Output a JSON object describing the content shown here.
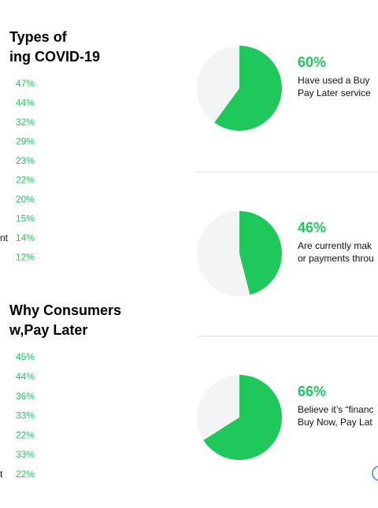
{
  "left_sections": [
    {
      "title_lines": [
        "Types of",
        "ing COVID-19"
      ],
      "items": [
        "47%",
        "44%",
        "32%",
        "29%",
        "23%",
        "22%",
        "20%",
        "15%",
        "14%",
        "12%"
      ],
      "fragments": [
        {
          "text": "nt",
          "row": 8
        }
      ]
    },
    {
      "title_lines": [
        "Why Consumers",
        "w,Pay Later"
      ],
      "items": [
        "45%",
        "44%",
        "36%",
        "33%",
        "22%",
        "33%",
        "22%"
      ],
      "fragments": [
        {
          "text": "t",
          "row": 6
        }
      ]
    }
  ],
  "chart_data": [
    {
      "type": "pie",
      "values": [
        60
      ],
      "value_labels": [
        "60%"
      ],
      "text_lines": [
        "Have used a Buy",
        "Pay Later service"
      ],
      "color": "#1fc85a"
    },
    {
      "type": "pie",
      "values": [
        46
      ],
      "value_labels": [
        "46%"
      ],
      "text_lines": [
        "Are currently mak",
        "or payments throu"
      ],
      "color": "#1fc85a"
    },
    {
      "type": "pie",
      "values": [
        66
      ],
      "value_labels": [
        "66%"
      ],
      "text_lines": [
        "Believe it’s “financ",
        "Buy Now, Pay Lat"
      ],
      "color": "#1fc85a"
    }
  ]
}
